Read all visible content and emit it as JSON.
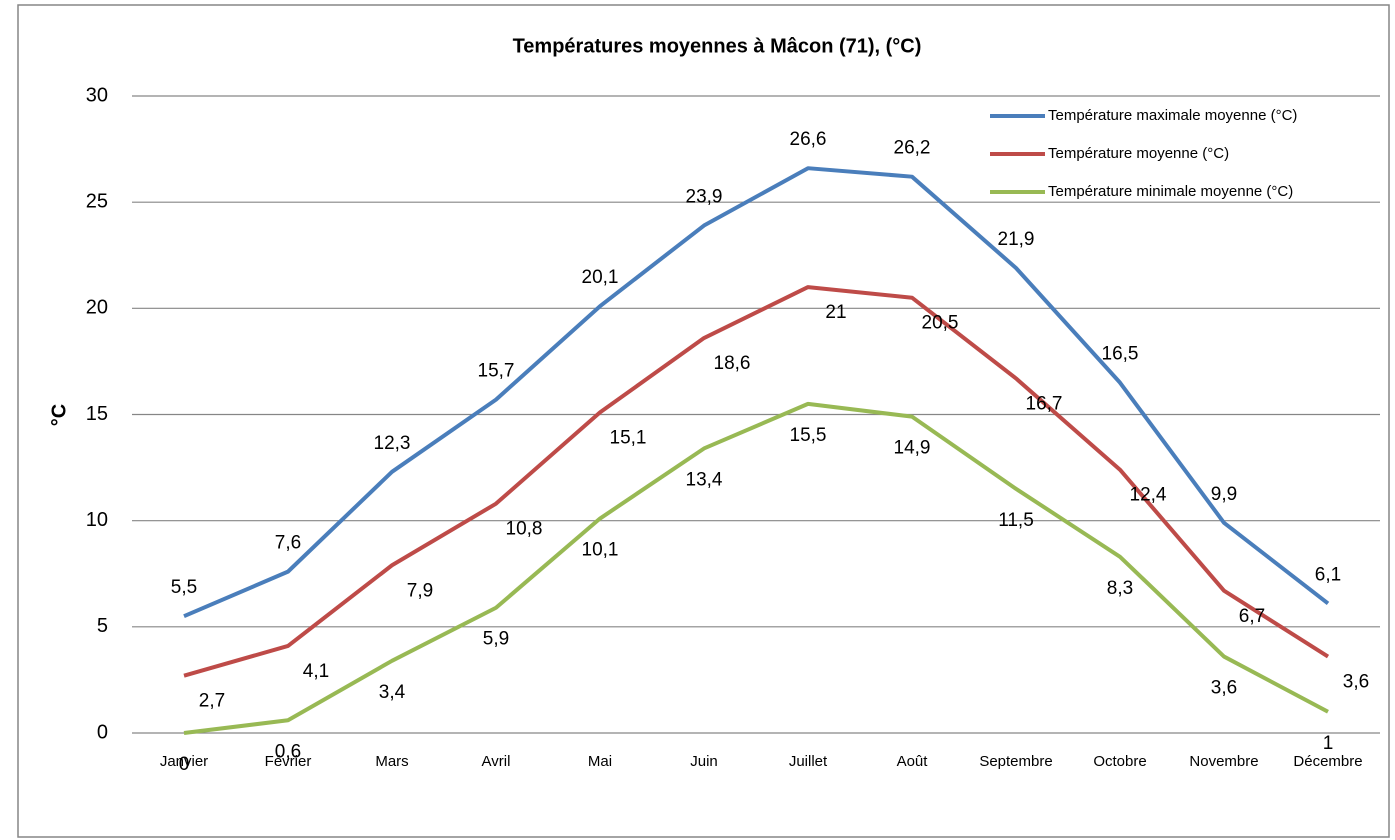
{
  "chart_data": {
    "type": "line",
    "title": "Températures moyennes à Mâcon (71), (°C)",
    "y_label": "°C",
    "categories": [
      "Janvier",
      "Février",
      "Mars",
      "Avril",
      "Mai",
      "Juin",
      "Juillet",
      "Août",
      "Septembre",
      "Octobre",
      "Novembre",
      "Décembre"
    ],
    "series": [
      {
        "name": "Température maximale moyenne (°C)",
        "color": "#4a7ebb",
        "values": [
          5.5,
          7.6,
          12.3,
          15.7,
          20.1,
          23.9,
          26.6,
          26.2,
          21.9,
          16.5,
          9.9,
          6.1
        ],
        "value_labels": [
          "5,5",
          "7,6",
          "12,3",
          "15,7",
          "20,1",
          "23,9",
          "26,6",
          "26,2",
          "21,9",
          "16,5",
          "9,9",
          "6,1"
        ]
      },
      {
        "name": "Température moyenne (°C)",
        "color": "#be4b48",
        "values": [
          2.7,
          4.1,
          7.9,
          10.8,
          15.1,
          18.6,
          21,
          20.5,
          16.7,
          12.4,
          6.7,
          3.6
        ],
        "value_labels": [
          "2,7",
          "4,1",
          "7,9",
          "10,8",
          "15,1",
          "18,6",
          "21",
          "20,5",
          "16,7",
          "12,4",
          "6,7",
          "3,6"
        ]
      },
      {
        "name": "Température minimale moyenne (°C)",
        "color": "#98b954",
        "values": [
          0,
          0.6,
          3.4,
          5.9,
          10.1,
          13.4,
          15.5,
          14.9,
          11.5,
          8.3,
          3.6,
          1
        ],
        "value_labels": [
          "0",
          "0,6",
          "3,4",
          "5,9",
          "10,1",
          "13,4",
          "15,5",
          "14,9",
          "11,5",
          "8,3",
          "3,6",
          "1"
        ]
      }
    ],
    "ylim": [
      0,
      30
    ],
    "yticks": [
      0,
      5,
      10,
      15,
      20,
      25,
      30
    ],
    "grid": true,
    "legend": "top-right"
  }
}
